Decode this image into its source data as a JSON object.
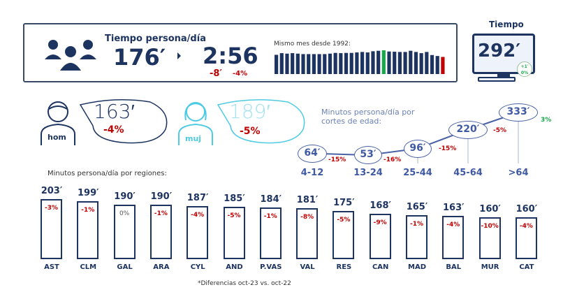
{
  "summary": {
    "title": "Tiempo persona/día",
    "minutes": "176′",
    "hours": "2:56",
    "diff_minutes": "-8′",
    "diff_pct": "-4%",
    "history_label": "Mismo mes desde 1992:"
  },
  "history_levels": [
    0.81,
    0.88,
    0.86,
    0.88,
    0.86,
    0.84,
    0.84,
    0.84,
    0.84,
    0.84,
    0.86,
    0.89,
    0.88,
    0.89,
    0.89,
    0.91,
    0.93,
    0.91,
    0.96,
    0.98,
    1.0,
    0.95,
    0.94,
    0.93,
    0.93,
    0.98,
    0.93,
    0.88,
    0.93,
    0.8,
    0.76,
    0.72
  ],
  "history_highlight": {
    "max_index": 20,
    "last_index": 31,
    "max_color": "#1aa64b",
    "last_color": "#c00000",
    "bar_color": "#1d3461"
  },
  "tv": {
    "title": "Tiempo",
    "value": "292′",
    "badge_top": "+1′",
    "badge_bottom": "0%"
  },
  "gender": [
    {
      "label": "hom",
      "value": "163′",
      "pct": "-4%",
      "color": "#1d3461"
    },
    {
      "label": "muj",
      "value": "189′",
      "pct": "-5%",
      "color": "#4ecbe3"
    }
  ],
  "chart_data": [
    {
      "type": "line",
      "title": "Minutos persona/día por cortes de edad:",
      "categories": [
        "4-12",
        "13-24",
        "25-44",
        "45-64",
        ">64"
      ],
      "values": [
        64,
        53,
        96,
        220,
        333
      ],
      "value_labels": [
        "64′",
        "53′",
        "96′",
        "220′",
        "333′"
      ],
      "changes": [
        "-15%",
        "-16%",
        "-15%",
        "-5%",
        "3%"
      ]
    },
    {
      "type": "bar",
      "title": "Minutos persona/día por regiones:",
      "categories": [
        "AST",
        "CLM",
        "GAL",
        "ARA",
        "CYL",
        "AND",
        "P.VAS",
        "VAL",
        "RES",
        "CAN",
        "MAD",
        "BAL",
        "MUR",
        "CAT"
      ],
      "values": [
        203,
        199,
        190,
        190,
        187,
        185,
        184,
        181,
        175,
        168,
        165,
        163,
        160,
        160
      ],
      "value_labels": [
        "203′",
        "199′",
        "190′",
        "190′",
        "187′",
        "185′",
        "184′",
        "181′",
        "175′",
        "168′",
        "165′",
        "163′",
        "160′",
        "160′"
      ],
      "changes": [
        "-3%",
        "-1%",
        "0%",
        "-1%",
        "-4%",
        "-5%",
        "-1%",
        "-8%",
        "-5%",
        "-9%",
        "-1%",
        "-4%",
        "-10%",
        "-4%"
      ]
    }
  ],
  "footnote": "*Diferencias oct-23 vs. oct-22"
}
